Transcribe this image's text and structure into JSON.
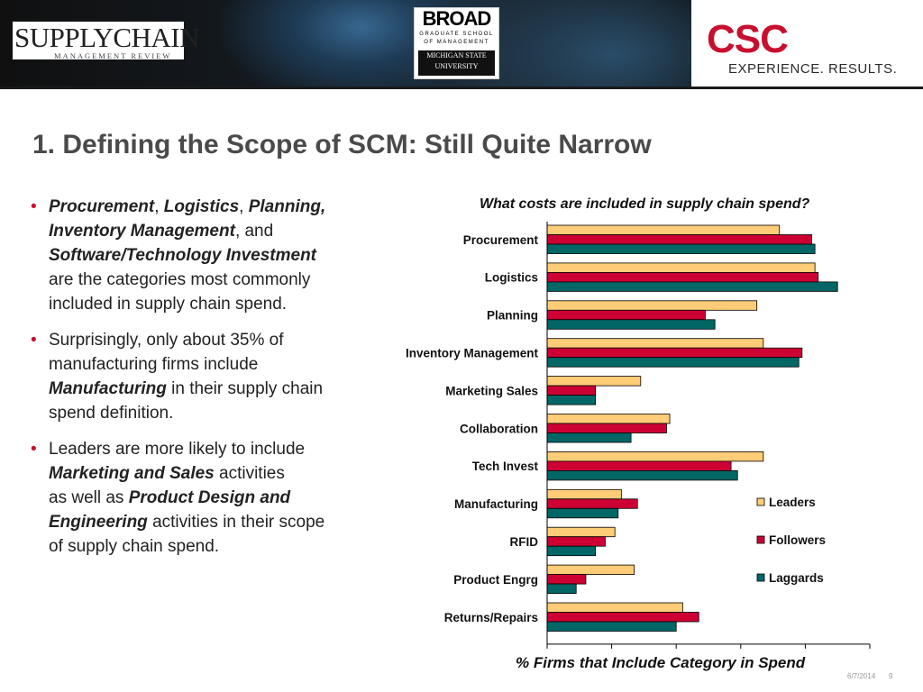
{
  "header": {
    "scm_logo": {
      "main": "SUPPLYCHAIN",
      "sub": "MANAGEMENT REVIEW"
    },
    "broad_logo": {
      "title": "BROAD",
      "line1": "GRADUATE SCHOOL",
      "line2": "OF MANAGEMENT",
      "msu1": "MICHIGAN STATE",
      "msu2": "UNIVERSITY"
    },
    "csc_logo": "CSC",
    "tagline": "EXPERIENCE. RESULTS."
  },
  "slide": {
    "title": "1. Defining the Scope of SCM: Still Quite Narrow",
    "bullets": {
      "b1": {
        "p1": "Procurement",
        "s1": ", ",
        "p2": "Logistics",
        "s2": ", ",
        "p3": "Planning,",
        "p4": "Inventory Management",
        "s3": ", and",
        "p5": "Software/Technology Investment",
        "rest1": "are the categories most commonly",
        "rest2": "included in supply chain spend."
      },
      "b2": {
        "l1": "Surprisingly, only about 35% of",
        "l2": "manufacturing firms include",
        "em": "Manufacturing",
        "l3": " in their supply chain",
        "l4": "spend definition."
      },
      "b3": {
        "l1": "Leaders are more likely to include",
        "em1": "Marketing and Sales",
        "l2": " activities",
        "l3": "as well as ",
        "em2": "Product Design and",
        "em3": "Engineering",
        "l4": " activities in their scope",
        "l5": "of supply chain spend."
      }
    }
  },
  "chart_data": {
    "type": "bar",
    "orientation": "horizontal",
    "title": "What costs are included in supply chain spend?",
    "xlabel": "% Firms that Include Category in Spend",
    "categories": [
      "Procurement",
      "Logistics",
      "Planning",
      "Inventory Management",
      "Marketing Sales",
      "Collaboration",
      "Tech Invest",
      "Manufacturing",
      "RFID",
      "Product Engrg",
      "Returns/Repairs"
    ],
    "series": [
      {
        "name": "Leaders",
        "color": "#FFCC77",
        "values": [
          72,
          83,
          65,
          67,
          29,
          38,
          67,
          23,
          21,
          27,
          42
        ]
      },
      {
        "name": "Followers",
        "color": "#CC0033",
        "values": [
          82,
          84,
          49,
          79,
          15,
          37,
          57,
          28,
          18,
          12,
          47
        ]
      },
      {
        "name": "Laggards",
        "color": "#006666",
        "values": [
          83,
          90,
          52,
          78,
          15,
          26,
          59,
          22,
          15,
          9,
          40
        ]
      }
    ],
    "xlim": [
      0,
      100
    ],
    "grid": false,
    "legend_position": "lower-right"
  },
  "footer": {
    "date": "6/7/2014",
    "page": "9"
  }
}
